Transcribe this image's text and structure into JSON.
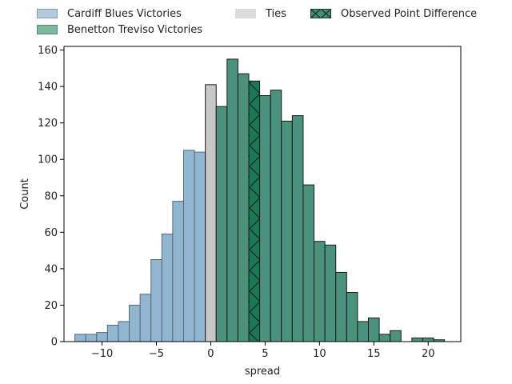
{
  "legend": {
    "cardiff": "Cardiff Blues Victories",
    "benetton": "Benetton Treviso Victories",
    "ties": "Ties",
    "observed": "Observed Point Difference"
  },
  "chart_data": {
    "type": "bar",
    "title": "",
    "xlabel": "spread",
    "ylabel": "Count",
    "xlim": [
      -13.5,
      23
    ],
    "ylim": [
      0,
      162
    ],
    "xticks": [
      -10,
      -5,
      0,
      5,
      10,
      15,
      20
    ],
    "yticks": [
      0,
      20,
      40,
      60,
      80,
      100,
      120,
      140,
      160
    ],
    "bin_width": 1,
    "colors": {
      "cardiff": "#91b6d0",
      "benetton": "#4a927b",
      "ties": "#c8c8c8",
      "observed": "#1c7757",
      "edge_cardiff": "#56677a",
      "edge_dark": "#1a1a1a"
    },
    "bins": [
      {
        "x": -12.5,
        "count": 4,
        "group": "cardiff"
      },
      {
        "x": -11.5,
        "count": 4,
        "group": "cardiff"
      },
      {
        "x": -10.5,
        "count": 5,
        "group": "cardiff"
      },
      {
        "x": -9.5,
        "count": 9,
        "group": "cardiff"
      },
      {
        "x": -8.5,
        "count": 11,
        "group": "cardiff"
      },
      {
        "x": -7.5,
        "count": 20,
        "group": "cardiff"
      },
      {
        "x": -6.5,
        "count": 26,
        "group": "cardiff"
      },
      {
        "x": -5.5,
        "count": 45,
        "group": "cardiff"
      },
      {
        "x": -4.5,
        "count": 59,
        "group": "cardiff"
      },
      {
        "x": -3.5,
        "count": 77,
        "group": "cardiff"
      },
      {
        "x": -2.5,
        "count": 105,
        "group": "cardiff"
      },
      {
        "x": -1.5,
        "count": 104,
        "group": "cardiff"
      },
      {
        "x": -0.5,
        "count": 141,
        "group": "ties"
      },
      {
        "x": 0.5,
        "count": 129,
        "group": "benetton"
      },
      {
        "x": 1.5,
        "count": 155,
        "group": "benetton"
      },
      {
        "x": 2.5,
        "count": 147,
        "group": "benetton"
      },
      {
        "x": 3.5,
        "count": 143,
        "group": "observed"
      },
      {
        "x": 4.5,
        "count": 135,
        "group": "benetton"
      },
      {
        "x": 5.5,
        "count": 138,
        "group": "benetton"
      },
      {
        "x": 6.5,
        "count": 121,
        "group": "benetton"
      },
      {
        "x": 7.5,
        "count": 124,
        "group": "benetton"
      },
      {
        "x": 8.5,
        "count": 86,
        "group": "benetton"
      },
      {
        "x": 9.5,
        "count": 55,
        "group": "benetton"
      },
      {
        "x": 10.5,
        "count": 53,
        "group": "benetton"
      },
      {
        "x": 11.5,
        "count": 38,
        "group": "benetton"
      },
      {
        "x": 12.5,
        "count": 27,
        "group": "benetton"
      },
      {
        "x": 13.5,
        "count": 11,
        "group": "benetton"
      },
      {
        "x": 14.5,
        "count": 13,
        "group": "benetton"
      },
      {
        "x": 15.5,
        "count": 4,
        "group": "benetton"
      },
      {
        "x": 16.5,
        "count": 6,
        "group": "benetton"
      },
      {
        "x": 18.5,
        "count": 2,
        "group": "benetton"
      },
      {
        "x": 19.5,
        "count": 2,
        "group": "benetton"
      },
      {
        "x": 20.5,
        "count": 1,
        "group": "benetton"
      }
    ]
  }
}
